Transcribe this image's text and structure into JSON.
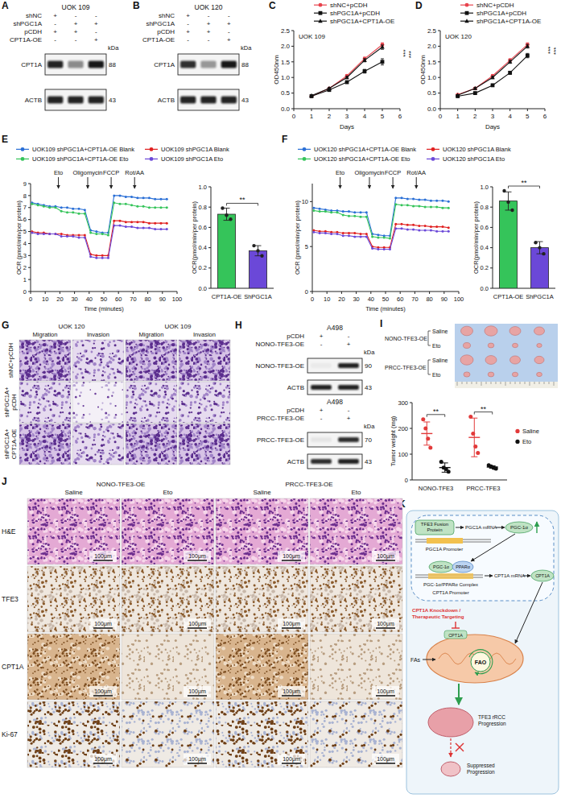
{
  "panel_letters": [
    "A",
    "B",
    "C",
    "D",
    "E",
    "F",
    "G",
    "H",
    "I",
    "J",
    "K"
  ],
  "blots": {
    "A": {
      "title": "UOK 109",
      "unit": "kDa",
      "conditions": [
        {
          "name": "shNC",
          "signs": [
            "+",
            "-",
            "-"
          ]
        },
        {
          "name": "shPGC1A",
          "signs": [
            "-",
            "+",
            "+"
          ]
        },
        {
          "name": "pCDH",
          "signs": [
            "+",
            "+",
            "-"
          ]
        },
        {
          "name": "CPT1A-OE",
          "signs": [
            "-",
            "-",
            "+"
          ]
        }
      ],
      "bands": [
        {
          "name": "CPT1A",
          "kda": 88
        },
        {
          "name": "ACTB",
          "kda": 43
        }
      ]
    },
    "B": {
      "title": "UOK 120",
      "unit": "kDa",
      "conditions": [
        {
          "name": "shNC",
          "signs": [
            "+",
            "-",
            "-"
          ]
        },
        {
          "name": "shPGC1A",
          "signs": [
            "-",
            "+",
            "+"
          ]
        },
        {
          "name": "pCDH",
          "signs": [
            "+",
            "+",
            "-"
          ]
        },
        {
          "name": "CPT1A-OE",
          "signs": [
            "-",
            "-",
            "+"
          ]
        }
      ],
      "bands": [
        {
          "name": "CPT1A",
          "kda": 88
        },
        {
          "name": "ACTB",
          "kda": 43
        }
      ]
    },
    "H": [
      {
        "title": "A498",
        "unit": "kDa",
        "conditions": [
          {
            "name": "pCDH",
            "signs": [
              "+",
              "-"
            ]
          },
          {
            "name": "NONO-TFE3-OE",
            "signs": [
              "-",
              "+"
            ]
          }
        ],
        "bands": [
          {
            "name": "NONO-TFE3-OE",
            "kda": 90
          },
          {
            "name": "ACTB",
            "kda": 43
          }
        ]
      },
      {
        "title": "A498",
        "unit": "kDa",
        "conditions": [
          {
            "name": "pCDH",
            "signs": [
              "+",
              "-"
            ]
          },
          {
            "name": "PRCC-TFE3-OE",
            "signs": [
              "-",
              "+"
            ]
          }
        ],
        "bands": [
          {
            "name": "PRCC-TFE3-OE",
            "kda": 70
          },
          {
            "name": "ACTB",
            "kda": 43
          }
        ]
      }
    ]
  },
  "chart_data": [
    {
      "type": "line",
      "title": "UOK 109",
      "x_label": "Days",
      "y_label": "OD450nm",
      "x": [
        1,
        2,
        3,
        4,
        5
      ],
      "xlim": [
        0,
        6
      ],
      "xticks": [
        0,
        1,
        2,
        3,
        4,
        5,
        6
      ],
      "ylim": [
        0,
        2.5
      ],
      "yticks": [
        {
          "value": 0,
          "label": "0.0"
        },
        0.5,
        {
          "value": 1,
          "label": "1.0"
        },
        1.5,
        {
          "value": 2,
          "label": "2.0"
        },
        2.5
      ],
      "legend": "top",
      "annotations": [
        "***",
        "***"
      ],
      "series": [
        {
          "name": "shNC+pCDH",
          "color": "#e8434d",
          "marker": "circle",
          "values": [
            0.4,
            0.65,
            1.05,
            1.6,
            2.05
          ],
          "errors": [
            0.02,
            0.03,
            0.04,
            0.05,
            0.06
          ]
        },
        {
          "name": "shPGC1A+pCDH",
          "color": "#111111",
          "marker": "square",
          "values": [
            0.4,
            0.6,
            0.85,
            1.2,
            1.5
          ],
          "errors": [
            0.02,
            0.03,
            0.04,
            0.06,
            0.1
          ]
        },
        {
          "name": "shPGC1A+CPT1A-OE",
          "color": "#111111",
          "marker": "triangle",
          "values": [
            0.42,
            0.65,
            1.0,
            1.55,
            1.97
          ],
          "errors": [
            0.02,
            0.03,
            0.04,
            0.05,
            0.07
          ]
        }
      ]
    },
    {
      "type": "line",
      "title": "UOK 120",
      "x_label": "Days",
      "y_label": "OD450nm",
      "x": [
        1,
        2,
        3,
        4,
        5
      ],
      "xlim": [
        0,
        6
      ],
      "xticks": [
        0,
        1,
        2,
        3,
        4,
        5,
        6
      ],
      "ylim": [
        0,
        2.5
      ],
      "yticks": [
        {
          "value": 0,
          "label": "0.0"
        },
        0.5,
        {
          "value": 1,
          "label": "1.0"
        },
        1.5,
        {
          "value": 2,
          "label": "2.0"
        },
        2.5
      ],
      "legend": "top",
      "annotations": [
        "***",
        "***"
      ],
      "series": [
        {
          "name": "shNC+pCDH",
          "color": "#e8434d",
          "marker": "circle",
          "values": [
            0.45,
            0.65,
            1.05,
            1.55,
            2.05
          ],
          "errors": [
            0.02,
            0.03,
            0.04,
            0.05,
            0.06
          ]
        },
        {
          "name": "shPGC1A+pCDH",
          "color": "#111111",
          "marker": "square",
          "values": [
            0.4,
            0.5,
            0.75,
            1.15,
            1.7
          ],
          "errors": [
            0.02,
            0.03,
            0.04,
            0.05,
            0.07
          ]
        },
        {
          "name": "shPGC1A+CPT1A-OE",
          "color": "#111111",
          "marker": "triangle",
          "values": [
            0.43,
            0.65,
            1.0,
            1.5,
            2.0
          ],
          "errors": [
            0.02,
            0.03,
            0.04,
            0.05,
            0.06
          ]
        }
      ]
    },
    {
      "type": "line",
      "x_label": "Time (minutes)",
      "y_label": "OCR (pmol/min/per protein)",
      "x": [
        1,
        5,
        9,
        13,
        17,
        21,
        25,
        29,
        33,
        37,
        41,
        45,
        49,
        53,
        57,
        61,
        65,
        69,
        73,
        77,
        81,
        85,
        89,
        93
      ],
      "xlim": [
        0,
        100
      ],
      "xticks": [
        0,
        10,
        20,
        30,
        40,
        50,
        60,
        70,
        80,
        90,
        100
      ],
      "ylim": [
        0,
        9
      ],
      "yticks": [
        0,
        1,
        2,
        3,
        4,
        5,
        6,
        7,
        8,
        9
      ],
      "legend": "top",
      "injections": [
        "Eto",
        "Oligomycin",
        "FCCP",
        "Rot/AA"
      ],
      "injection_times": [
        19,
        39,
        55,
        71
      ],
      "series": [
        {
          "name": "UOK109 shPGC1A+CPT1A-OE Blank",
          "color": "#2a6fd6",
          "marker": "circle",
          "values": [
            7.4,
            7.3,
            7.2,
            7.1,
            7.1,
            7.0,
            7.0,
            6.9,
            6.9,
            6.8,
            5.1,
            5.0,
            4.9,
            4.9,
            8.0,
            8.0,
            7.9,
            7.9,
            7.8,
            7.8,
            7.8,
            7.7,
            7.7,
            7.7
          ]
        },
        {
          "name": "UOK109 shPGC1A Blank",
          "color": "#e02020",
          "marker": "circle",
          "values": [
            5.0,
            4.9,
            4.9,
            4.8,
            4.8,
            4.8,
            4.7,
            4.7,
            4.7,
            4.7,
            3.1,
            3.0,
            3.0,
            3.0,
            5.9,
            5.9,
            5.8,
            5.8,
            5.8,
            5.8,
            5.7,
            5.7,
            5.7,
            5.7
          ]
        },
        {
          "name": "UOK109 shPGC1A+CPT1A-OE Eto",
          "color": "#35c45a",
          "marker": "circle",
          "values": [
            7.3,
            7.2,
            7.1,
            7.0,
            7.0,
            6.7,
            6.6,
            6.6,
            6.5,
            6.5,
            4.9,
            4.8,
            4.8,
            4.7,
            7.4,
            7.3,
            7.3,
            7.2,
            7.1,
            7.1,
            7.0,
            7.0,
            7.0,
            7.0
          ]
        },
        {
          "name": "UOK109 shPGC1A Eto",
          "color": "#6b48d8",
          "marker": "circle",
          "values": [
            4.9,
            4.8,
            4.8,
            4.8,
            4.8,
            4.6,
            4.6,
            4.6,
            4.5,
            4.5,
            2.9,
            2.8,
            2.8,
            2.8,
            5.5,
            5.5,
            5.4,
            5.4,
            5.3,
            5.3,
            5.3,
            5.2,
            5.2,
            5.2
          ]
        }
      ]
    },
    {
      "type": "bar",
      "y_label": "OCR(pmol/min/per protein)",
      "categories": [
        "CPT1A-OE",
        "ShPGC1A"
      ],
      "values": [
        0.73,
        0.37
      ],
      "errors": [
        0.06,
        0.05
      ],
      "points": [
        [
          0.79,
          0.72,
          0.68
        ],
        [
          0.42,
          0.37,
          0.32
        ]
      ],
      "colors": [
        "#35c45a",
        "#6b48d8"
      ],
      "ylim": [
        0,
        1
      ],
      "yticks": [
        {
          "value": 0,
          "label": "0.0"
        },
        0.2,
        0.4,
        0.6,
        0.8,
        {
          "value": 1,
          "label": "1.0"
        }
      ],
      "annotations": [
        "**"
      ]
    },
    {
      "type": "line",
      "x_label": "Time (minutes)",
      "y_label": "OCR (pmol/min/per protein)",
      "x": [
        1,
        5,
        9,
        13,
        17,
        21,
        25,
        29,
        33,
        37,
        41,
        45,
        49,
        53,
        57,
        61,
        65,
        69,
        73,
        77,
        81,
        85,
        89,
        93
      ],
      "xlim": [
        0,
        100
      ],
      "xticks": [
        0,
        10,
        20,
        30,
        40,
        50,
        60,
        70,
        80,
        90,
        100
      ],
      "ylim": [
        0,
        12
      ],
      "yticks": [
        0,
        5,
        10
      ],
      "legend": "top",
      "injections": [
        "Eto",
        "Oligomycin",
        "FCCP",
        "Rot/AA"
      ],
      "injection_times": [
        19,
        39,
        55,
        71
      ],
      "series": [
        {
          "name": "UOK120 shPGC1A+CPT1A-OE Blank",
          "color": "#2a6fd6",
          "marker": "circle",
          "values": [
            9.3,
            9.2,
            9.1,
            9.0,
            9.0,
            8.9,
            8.9,
            8.8,
            8.8,
            8.8,
            6.4,
            6.3,
            6.2,
            6.2,
            10.4,
            10.4,
            10.3,
            10.3,
            10.2,
            10.2,
            10.1,
            10.1,
            10.1,
            10.0
          ]
        },
        {
          "name": "UOK120 shPGC1A Blank",
          "color": "#e02020",
          "marker": "circle",
          "values": [
            6.8,
            6.7,
            6.7,
            6.6,
            6.6,
            6.5,
            6.5,
            6.5,
            6.4,
            6.4,
            5.0,
            4.9,
            4.9,
            4.9,
            7.5,
            7.5,
            7.4,
            7.4,
            7.3,
            7.3,
            7.2,
            7.2,
            7.2,
            7.1
          ]
        },
        {
          "name": "UOK120 shPGC1A+CPT1A-OE Eto",
          "color": "#35c45a",
          "marker": "circle",
          "values": [
            9.0,
            8.9,
            8.9,
            8.8,
            8.8,
            8.5,
            8.4,
            8.4,
            8.3,
            8.3,
            6.1,
            6.0,
            6.0,
            5.9,
            9.7,
            9.6,
            9.6,
            9.5,
            9.5,
            9.4,
            9.4,
            9.4,
            9.3,
            9.3
          ]
        },
        {
          "name": "UOK120 shPGC1A Eto",
          "color": "#6b48d8",
          "marker": "circle",
          "values": [
            6.6,
            6.5,
            6.5,
            6.4,
            6.4,
            6.2,
            6.2,
            6.1,
            6.1,
            6.1,
            4.8,
            4.7,
            4.7,
            4.7,
            7.0,
            7.0,
            6.9,
            6.9,
            6.8,
            6.8,
            6.8,
            6.7,
            6.7,
            6.7
          ]
        }
      ]
    },
    {
      "type": "bar",
      "y_label": "OCR(pmol/min/per protein)",
      "categories": [
        "CPT1A-OE",
        "ShPGC1A"
      ],
      "values": [
        0.86,
        0.4
      ],
      "errors": [
        0.09,
        0.06
      ],
      "points": [
        [
          0.96,
          0.85,
          0.77
        ],
        [
          0.45,
          0.4,
          0.34
        ]
      ],
      "colors": [
        "#35c45a",
        "#6b48d8"
      ],
      "ylim": [
        0,
        1
      ],
      "yticks": [
        {
          "value": 0,
          "label": "0.0"
        },
        0.2,
        0.4,
        0.6,
        0.8,
        {
          "value": 1,
          "label": "1.0"
        }
      ],
      "annotations": [
        "**"
      ]
    },
    {
      "type": "dot",
      "y_label": "Tumor weight (mg)",
      "categories": [
        "NONO-TFE3",
        "PRCC-TFE3"
      ],
      "ylim": [
        0,
        300
      ],
      "yticks": [
        0,
        100,
        200,
        300
      ],
      "legend": "right",
      "annotations": [
        "**",
        "**"
      ],
      "series": [
        {
          "name": "Saline",
          "color": "#e23a3a",
          "marker": "circle",
          "values": [
            180,
            165
          ],
          "errors": [
            45,
            75
          ],
          "points": [
            [
              235,
              200,
              160,
              125
            ],
            [
              245,
              180,
              130,
              105
            ]
          ]
        },
        {
          "name": "Eto",
          "color": "#111111",
          "marker": "circle",
          "values": [
            48,
            50
          ],
          "errors": [
            18,
            5
          ],
          "points": [
            [
              70,
              48,
              42,
              32
            ],
            [
              57,
              52,
              47,
              44
            ]
          ]
        }
      ]
    }
  ],
  "migration": {
    "groups": [
      "UOK 120",
      "UOK 109"
    ],
    "columns": [
      "Migration",
      "Invasion",
      "Migration",
      "Invasion"
    ],
    "rows": [
      "shNC+pCDH",
      "shPGC1A+pCDH",
      "shPGC1A+CPT1A-OE"
    ]
  },
  "tumor_photo": {
    "groups": [
      {
        "name": "NONO-TFE3-OE",
        "rows": [
          "Saline",
          "Eto"
        ]
      },
      {
        "name": "PRCC-TFE3-OE",
        "rows": [
          "Saline",
          "Eto"
        ]
      }
    ]
  },
  "ihc": {
    "groups": [
      "NONO-TFE3-OE",
      "PRCC-TFE3-OE"
    ],
    "columns": [
      "Saline",
      "Eto",
      "Saline",
      "Eto"
    ],
    "rows": [
      "H&E",
      "TFE3",
      "CPT1A",
      "Ki-67"
    ],
    "scale_bar": "100μm"
  },
  "diagram": {
    "fusion": "TFE3 Fusion Protein",
    "pgc1a_promoter": "PGC1A Promoter",
    "pgc1a_mrna": "PGC1A mRNA",
    "pgc1a_protein": "PGC-1α",
    "complex_parts": [
      "PGC-1α",
      "PPARα"
    ],
    "complex": "PGC-1α/PPARα Complex",
    "cpt1a_promoter": "CPT1A Promoter",
    "cpt1a_mrna": "CPT1A mRNA",
    "cpt1a_protein": "CPT1A",
    "inhibition": "CPT1A Knockdown / Therapeutic Targeting",
    "fatty_acids": "FAs",
    "mito_cpt1a": "CPT1A",
    "fao": "FAO",
    "progression": "TFE3 rRCC Progression",
    "suppressed": "Suppressed Progression"
  }
}
